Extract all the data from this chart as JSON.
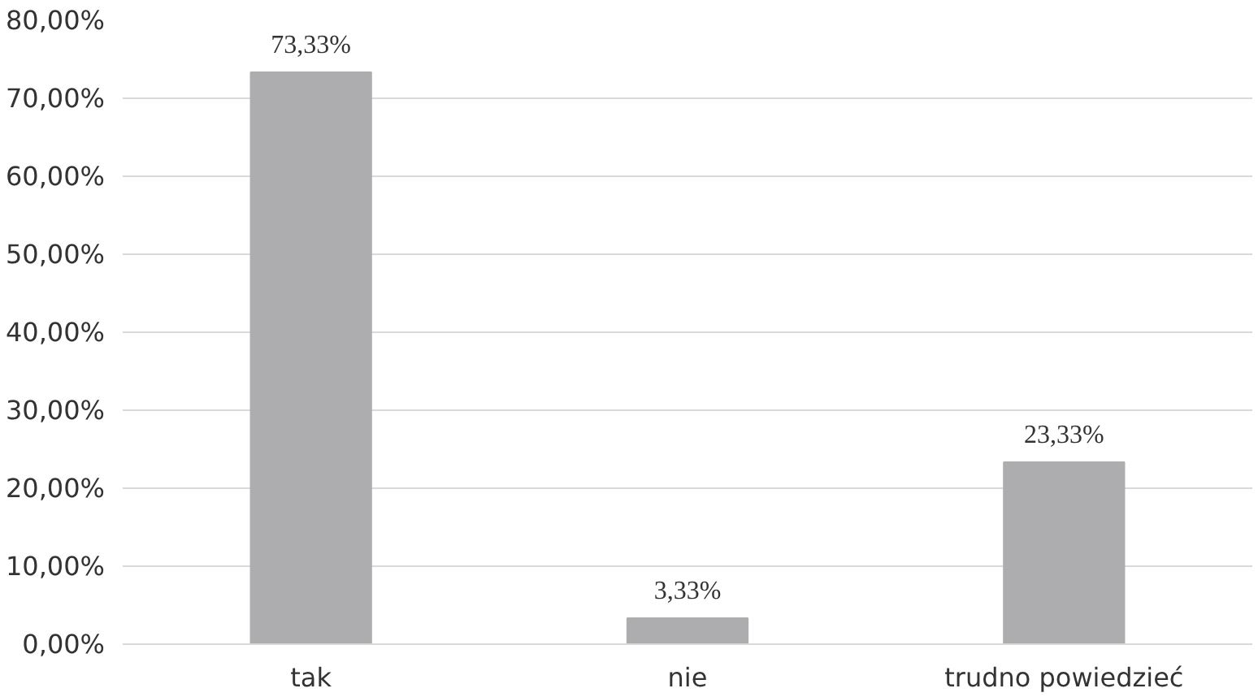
{
  "chart_data": {
    "type": "bar",
    "categories": [
      "tak",
      "nie",
      "trudno powiedzieć"
    ],
    "values": [
      73.33,
      3.33,
      23.33
    ],
    "value_labels": [
      "73,33%",
      "3,33%",
      "23,33%"
    ],
    "color": "#adadb0",
    "ylim": [
      0,
      80
    ],
    "yticks": [
      {
        "value": 0,
        "label": "0,00%"
      },
      {
        "value": 10,
        "label": "10,00%"
      },
      {
        "value": 20,
        "label": "20,00%"
      },
      {
        "value": 30,
        "label": "30,00%"
      },
      {
        "value": 40,
        "label": "40,00%"
      },
      {
        "value": 50,
        "label": "50,00%"
      },
      {
        "value": 60,
        "label": "60,00%"
      },
      {
        "value": 70,
        "label": "70,00%"
      },
      {
        "value": 80,
        "label": "80,00%"
      }
    ],
    "grid": "y"
  }
}
